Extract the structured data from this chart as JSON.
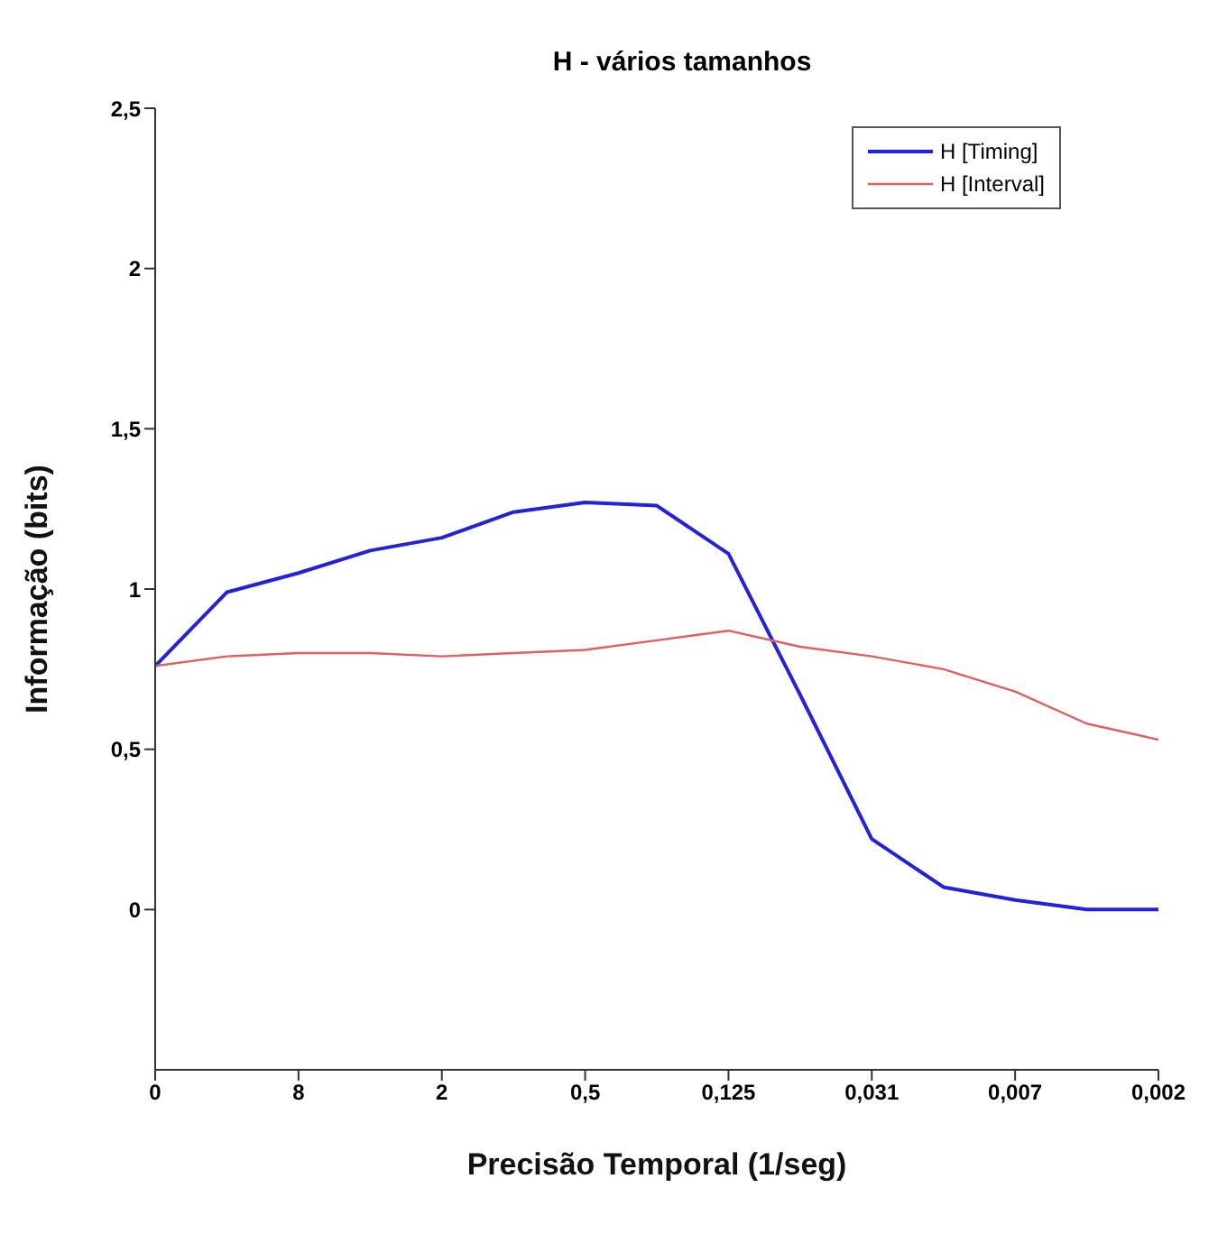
{
  "chart_data": {
    "type": "line",
    "title": "H - vários tamanhos",
    "xlabel": "Precisão Temporal (1/seg)",
    "ylabel": "Informação (bits)",
    "categories": [
      "0",
      null,
      "8",
      null,
      "2",
      null,
      "0,5",
      null,
      "0,125",
      null,
      "0,031",
      null,
      "0,007",
      null,
      "0,002"
    ],
    "series": [
      {
        "name": "H [Timing]",
        "color": "#2222dd",
        "values": [
          0.76,
          0.99,
          1.05,
          1.12,
          1.16,
          1.24,
          1.27,
          1.26,
          1.11,
          0.67,
          0.22,
          0.07,
          0.03,
          0.0,
          0.0
        ]
      },
      {
        "name": "H [Interval]",
        "color": "#e06060",
        "values": [
          0.76,
          0.79,
          0.8,
          0.8,
          0.79,
          0.8,
          0.81,
          0.84,
          0.87,
          0.82,
          0.79,
          0.75,
          0.68,
          0.58,
          0.53
        ]
      }
    ],
    "ylim": [
      -0.5,
      2.5
    ],
    "yticks": [
      {
        "value": 0,
        "label": "0"
      },
      {
        "value": 0.5,
        "label": "0,5"
      },
      {
        "value": 1,
        "label": "1"
      },
      {
        "value": 1.5,
        "label": "1,5"
      },
      {
        "value": 2,
        "label": "2"
      },
      {
        "value": 2.5,
        "label": "2,5"
      }
    ],
    "grid": false,
    "legend": "top right",
    "marker": "none",
    "line_style": "solid"
  }
}
